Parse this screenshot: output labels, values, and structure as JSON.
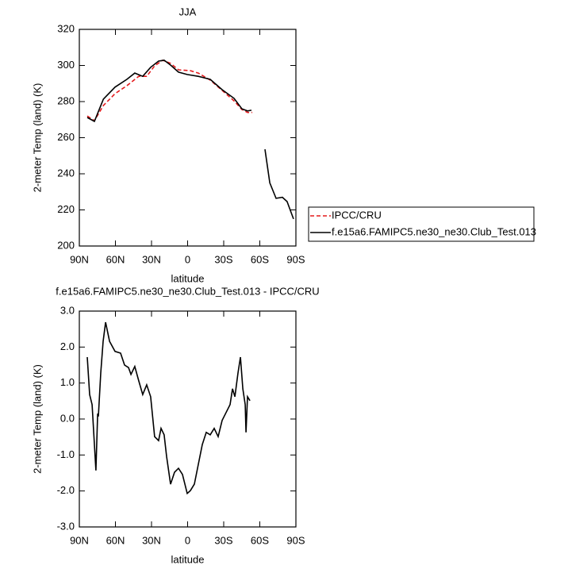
{
  "chart_data": [
    {
      "type": "line",
      "title": "JJA",
      "xlabel": "latitude",
      "ylabel": "2-meter Temp (land) (K)",
      "xlim": [
        90,
        -90
      ],
      "xticks": [
        {
          "value": 90,
          "label": "90N"
        },
        {
          "value": 60,
          "label": "60N"
        },
        {
          "value": 30,
          "label": "30N"
        },
        0,
        {
          "value": -30,
          "label": "30S"
        },
        {
          "value": -60,
          "label": "60S"
        },
        {
          "value": -90,
          "label": "90S"
        }
      ],
      "ylim": [
        200,
        320
      ],
      "yticks": [
        200,
        220,
        240,
        260,
        280,
        300,
        320
      ],
      "legend": "right",
      "series": [
        {
          "name": "IPCC/CRU",
          "color": "#e41a1c",
          "dash": true,
          "x": [
            83.4,
            77.5,
            70,
            60.3,
            50.5,
            40.6,
            34,
            27.4,
            20.8,
            14.2,
            7.6,
            -2.3,
            -8.9,
            -18.8,
            -28.7,
            -38.6,
            -45.1,
            -49.8,
            -53.7
          ],
          "values": [
            272,
            269.4,
            277.8,
            284.4,
            288.8,
            294,
            294,
            299.8,
            302.9,
            301.2,
            297.6,
            297.1,
            295.8,
            291.9,
            286.2,
            280.4,
            275.6,
            274,
            274
          ]
        },
        {
          "name": "f.e15a6.FAMIPC5.ne30_ne30.Club_Test.013",
          "color": "#000000",
          "dash": false,
          "x": [
            83.4,
            77.5,
            70,
            60.3,
            50.5,
            43.9,
            37.3,
            30.7,
            24.1,
            19.5,
            14.2,
            7.6,
            0.3,
            -8.9,
            -18.8,
            -28.7,
            -38.6,
            -45.1,
            -49.8,
            -53.1,
            -58,
            -64.3,
            -68.3,
            -73.5,
            -78.8,
            -82.7,
            -88
          ],
          "values": [
            271.2,
            269,
            281.3,
            288,
            292.3,
            295.8,
            294,
            299,
            302.4,
            302.9,
            300.2,
            296.3,
            295,
            294,
            292.3,
            286.6,
            281.8,
            276,
            274.8,
            275.2,
            null,
            253.6,
            235,
            226.4,
            227,
            224.6,
            215
          ]
        }
      ]
    },
    {
      "type": "line",
      "title": "f.e15a6.FAMIPC5.ne30_ne30.Club_Test.013 - IPCC/CRU",
      "xlabel": "latitude",
      "ylabel": "2-meter Temp (land) (K)",
      "xlim": [
        90,
        -90
      ],
      "xticks": [
        {
          "value": 90,
          "label": "90N"
        },
        {
          "value": 60,
          "label": "60N"
        },
        {
          "value": 30,
          "label": "30N"
        },
        0,
        {
          "value": -30,
          "label": "30S"
        },
        {
          "value": -60,
          "label": "60S"
        },
        {
          "value": -90,
          "label": "90S"
        }
      ],
      "ylim": [
        -3,
        3
      ],
      "yticks": [
        {
          "value": -3,
          "label": "-3.0"
        },
        {
          "value": -2,
          "label": "-2.0"
        },
        {
          "value": -1,
          "label": "-1.0"
        },
        {
          "value": 0,
          "label": "0.0"
        },
        {
          "value": 1,
          "label": "1.0"
        },
        {
          "value": 2,
          "label": "2.0"
        },
        {
          "value": 3,
          "label": "3.0"
        }
      ],
      "series": [
        {
          "color": "#000000",
          "dash": false,
          "x": [
            83.4,
            81.4,
            79.4,
            76.2,
            74.8,
            74.2,
            72.2,
            70.2,
            68.2,
            64.9,
            60.3,
            55.7,
            52.4,
            49.1,
            47.1,
            43.9,
            40.6,
            37.3,
            34,
            30.7,
            27.4,
            24.1,
            22.1,
            19.5,
            17.5,
            14.2,
            10.9,
            7.6,
            4.3,
            0.3,
            -2.3,
            -5.6,
            -8.9,
            -12.2,
            -15.5,
            -18.8,
            -22.1,
            -25.4,
            -28.7,
            -32,
            -35.3,
            -37.3,
            -39.3,
            -41.9,
            -43.9,
            -45.9,
            -47.9,
            -48.5,
            -49.8,
            -51.8
          ],
          "values": [
            1.72,
            0.68,
            0.4,
            -1.43,
            0.15,
            0.07,
            1.28,
            2.16,
            2.69,
            2.16,
            1.88,
            1.83,
            1.5,
            1.43,
            1.24,
            1.46,
            1.06,
            0.68,
            0.95,
            0.62,
            -0.49,
            -0.6,
            -0.26,
            -0.44,
            -1.04,
            -1.81,
            -1.48,
            -1.37,
            -1.54,
            -2.07,
            -1.99,
            -1.81,
            -1.26,
            -0.71,
            -0.37,
            -0.44,
            -0.26,
            -0.49,
            -0.04,
            0.18,
            0.4,
            0.84,
            0.62,
            1.28,
            1.72,
            0.84,
            0.4,
            -0.37,
            0.62,
            0.51
          ]
        }
      ]
    }
  ]
}
